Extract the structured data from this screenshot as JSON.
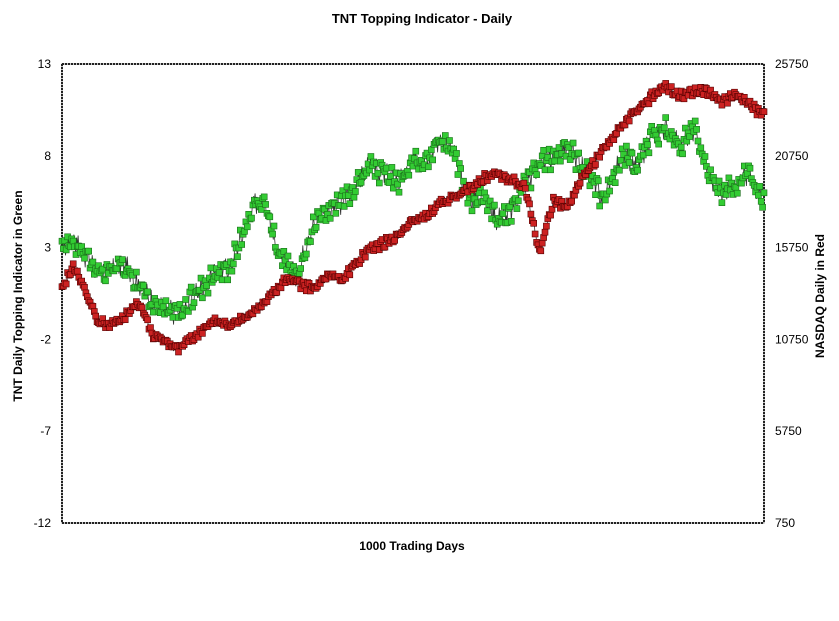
{
  "chart_data": {
    "type": "scatter",
    "title": "TNT Topping Indicator - Daily",
    "xlabel": "1000 Trading Days",
    "ylabel_left": "TNT Daily Topping Indicator in Green",
    "ylabel_right": "NASDAQ Daily in Red",
    "xlim": [
      0,
      1000
    ],
    "ylim_left": [
      -12,
      13
    ],
    "ylim_right": [
      750,
      25750
    ],
    "yticks_left": [
      "13",
      "8",
      "3",
      "-2",
      "-7",
      "-12"
    ],
    "yticks_right": [
      "25750",
      "20750",
      "15750",
      "10750",
      "5750",
      "750"
    ],
    "grid": false,
    "series": [
      {
        "name": "TNT Daily Topping Indicator",
        "axis": "left",
        "color": "#33cc33",
        "key_points": [
          [
            0,
            3.0
          ],
          [
            15,
            3.5
          ],
          [
            35,
            2.5
          ],
          [
            55,
            1.5
          ],
          [
            75,
            2.0
          ],
          [
            90,
            2.0
          ],
          [
            110,
            1.0
          ],
          [
            130,
            0.0
          ],
          [
            150,
            -0.5
          ],
          [
            170,
            -0.5
          ],
          [
            190,
            0.5
          ],
          [
            215,
            1.5
          ],
          [
            240,
            2.0
          ],
          [
            260,
            4.0
          ],
          [
            275,
            5.5
          ],
          [
            290,
            5.5
          ],
          [
            305,
            3.0
          ],
          [
            320,
            2.0
          ],
          [
            335,
            1.5
          ],
          [
            350,
            3.5
          ],
          [
            370,
            5.0
          ],
          [
            385,
            5.0
          ],
          [
            400,
            5.5
          ],
          [
            420,
            6.5
          ],
          [
            440,
            7.5
          ],
          [
            460,
            7.0
          ],
          [
            480,
            6.5
          ],
          [
            500,
            7.5
          ],
          [
            520,
            8.0
          ],
          [
            540,
            9.0
          ],
          [
            560,
            8.0
          ],
          [
            580,
            5.5
          ],
          [
            600,
            6.0
          ],
          [
            620,
            4.5
          ],
          [
            640,
            5.0
          ],
          [
            660,
            6.5
          ],
          [
            680,
            7.5
          ],
          [
            700,
            8.0
          ],
          [
            720,
            8.5
          ],
          [
            740,
            7.5
          ],
          [
            760,
            6.5
          ],
          [
            770,
            5.5
          ],
          [
            780,
            6.5
          ],
          [
            800,
            8.0
          ],
          [
            820,
            7.5
          ],
          [
            840,
            9.0
          ],
          [
            860,
            9.5
          ],
          [
            880,
            8.5
          ],
          [
            900,
            9.5
          ],
          [
            920,
            7.0
          ],
          [
            940,
            6.0
          ],
          [
            960,
            6.5
          ],
          [
            980,
            7.0
          ],
          [
            1000,
            5.5
          ]
        ]
      },
      {
        "name": "NASDAQ Daily",
        "axis": "right",
        "color": "#cc2222",
        "key_points": [
          [
            0,
            13500
          ],
          [
            15,
            14750
          ],
          [
            30,
            13750
          ],
          [
            50,
            11750
          ],
          [
            70,
            11500
          ],
          [
            90,
            12000
          ],
          [
            110,
            12750
          ],
          [
            130,
            11000
          ],
          [
            150,
            10500
          ],
          [
            165,
            10250
          ],
          [
            180,
            10750
          ],
          [
            200,
            11250
          ],
          [
            220,
            11750
          ],
          [
            240,
            11500
          ],
          [
            260,
            12000
          ],
          [
            280,
            12500
          ],
          [
            300,
            13250
          ],
          [
            320,
            14000
          ],
          [
            340,
            13750
          ],
          [
            360,
            13500
          ],
          [
            380,
            14250
          ],
          [
            400,
            14000
          ],
          [
            420,
            15000
          ],
          [
            440,
            15750
          ],
          [
            460,
            16000
          ],
          [
            480,
            16500
          ],
          [
            500,
            17250
          ],
          [
            520,
            17500
          ],
          [
            540,
            18250
          ],
          [
            560,
            18500
          ],
          [
            580,
            19000
          ],
          [
            600,
            19500
          ],
          [
            620,
            19750
          ],
          [
            640,
            19500
          ],
          [
            660,
            19000
          ],
          [
            670,
            17250
          ],
          [
            680,
            15500
          ],
          [
            700,
            18250
          ],
          [
            720,
            18000
          ],
          [
            740,
            19500
          ],
          [
            760,
            20500
          ],
          [
            780,
            21500
          ],
          [
            800,
            22500
          ],
          [
            820,
            23250
          ],
          [
            840,
            24000
          ],
          [
            860,
            24500
          ],
          [
            880,
            24000
          ],
          [
            900,
            24250
          ],
          [
            920,
            24250
          ],
          [
            940,
            23750
          ],
          [
            960,
            24000
          ],
          [
            980,
            23500
          ],
          [
            1000,
            23000
          ]
        ]
      }
    ]
  }
}
